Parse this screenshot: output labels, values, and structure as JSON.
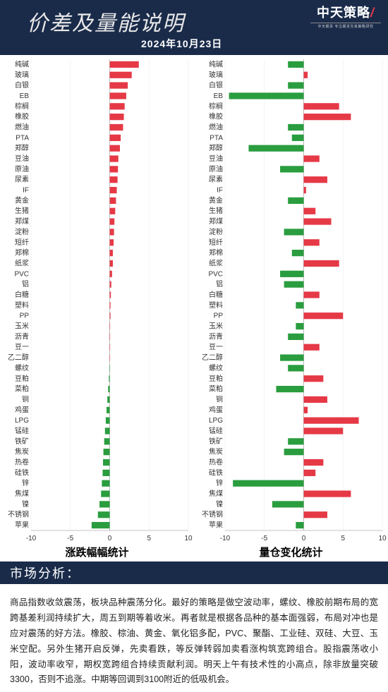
{
  "header": {
    "title": "价差及量能说明",
    "date": "2024年10月23日",
    "logo_main": "中天策略",
    "logo_sub": "中天期货 专注期货交易策略研究"
  },
  "colors": {
    "bg_header": "#1a2b4a",
    "pos": "#e63946",
    "neg": "#2a9d3f",
    "grid": "#e8e8e8",
    "axis": "#888888",
    "text": "#333333"
  },
  "categories": [
    "纯碱",
    "玻璃",
    "白银",
    "EB",
    "棕榈",
    "橡胶",
    "燃油",
    "PTA",
    "郑醇",
    "豆油",
    "原油",
    "尿素",
    "IF",
    "黄金",
    "生猪",
    "郑煤",
    "淀粉",
    "短纤",
    "郑棉",
    "纸浆",
    "PVC",
    "铝",
    "白糖",
    "塑料",
    "PP",
    "玉米",
    "沥青",
    "豆一",
    "乙二醇",
    "螺纹",
    "豆粕",
    "菜粕",
    "铜",
    "鸡蛋",
    "LPG",
    "锰硅",
    "铁矿",
    "焦炭",
    "热卷",
    "硅铁",
    "锌",
    "焦煤",
    "镍",
    "不锈钢",
    "苹果"
  ],
  "left_chart": {
    "title": "涨跌幅幅统计",
    "xmin": -10,
    "xmax": 10,
    "xticks": [
      -10,
      -5,
      0,
      5,
      10
    ],
    "values": [
      3.7,
      2.8,
      2.3,
      2.1,
      1.9,
      1.8,
      1.7,
      1.4,
      1.3,
      1.1,
      1.05,
      1.0,
      0.9,
      0.8,
      0.7,
      0.6,
      0.55,
      0.5,
      0.4,
      0.4,
      0.3,
      0.2,
      0.15,
      0.1,
      0.1,
      0.05,
      0.05,
      0.05,
      0.03,
      -0.05,
      -0.1,
      -0.2,
      -0.3,
      -0.4,
      -0.5,
      -0.6,
      -0.7,
      -0.8,
      -0.85,
      -0.9,
      -1.0,
      -1.1,
      -1.3,
      -1.5,
      -2.3
    ]
  },
  "right_chart": {
    "title": "量仓变化统计",
    "xmin": -10,
    "xmax": 10,
    "xticks": [
      -10,
      -5,
      0,
      5,
      10
    ],
    "values": [
      -2.0,
      0.5,
      -2.0,
      -9.5,
      4.5,
      6.0,
      -2.0,
      -1.5,
      -7.0,
      2.0,
      -3.0,
      3.0,
      0.3,
      -2.0,
      1.5,
      3.5,
      -2.5,
      2.0,
      -1.5,
      4.5,
      -3.0,
      -2.5,
      2.0,
      -1.0,
      5.0,
      -1.0,
      -2.0,
      2.0,
      -3.0,
      -2.0,
      2.5,
      -3.5,
      3.0,
      0.5,
      7.0,
      5.0,
      -2.0,
      -2.5,
      2.5,
      1.5,
      -9.0,
      6.0,
      -4.0,
      3.0,
      -1.0
    ]
  },
  "section_header": "市场分析：",
  "analysis_text": "商品指数收敛震荡，板块品种震荡分化。最好的策略是做空波动率，螺纹、橡胶前期布局的宽跨基差利润持续扩大，周五到期等着收米。再者就是根据各品种的基本面强弱，布局对冲也是应对震荡的好方法。橡胶、棕油、黄金、氧化铝多配，PVC、聚酯、工业硅、双硅、大豆、玉米空配。另外生猪开启反弹，先卖看跌，等反弹转弱加卖看涨构筑宽跨组合。股指震荡收小阳，波动率收窄，期权宽跨组合持续贡献利润。明天上午有技术性的小高点，除非放量突破3300，否则不追涨。中期等回调到3100附近的低吸机会。"
}
